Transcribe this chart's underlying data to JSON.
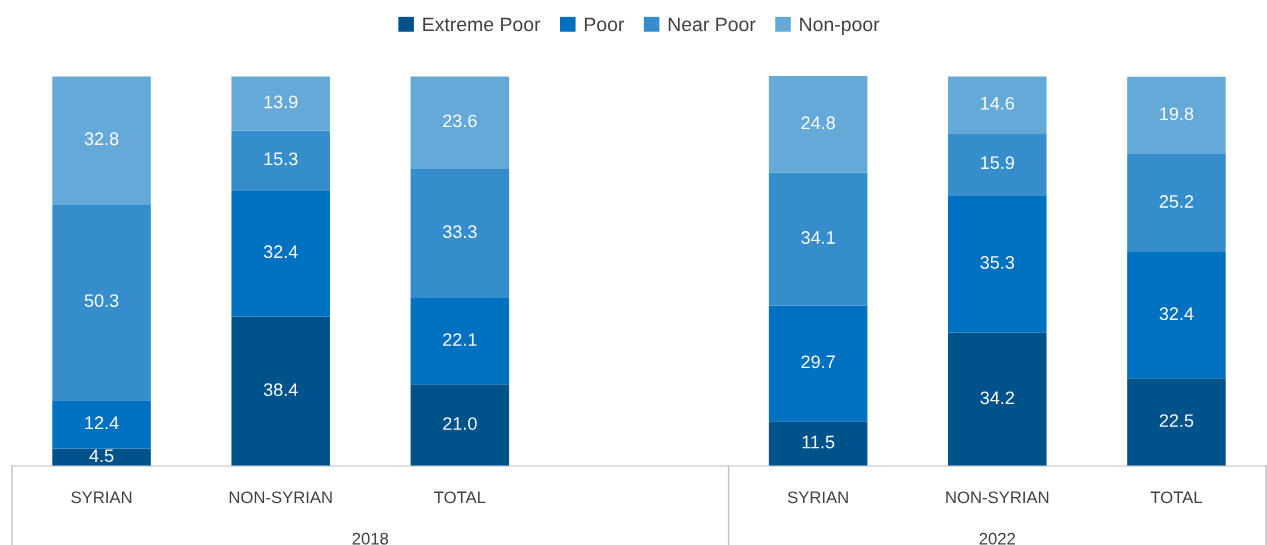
{
  "chart_data": {
    "type": "bar",
    "stacked": true,
    "legend": "top",
    "grid": false,
    "categories": [
      "SYRIAN",
      "NON-SYRIAN",
      "TOTAL",
      null,
      "SYRIAN",
      "NON-SYRIAN",
      "TOTAL"
    ],
    "series": [
      {
        "name": "Extreme Poor",
        "color": "#00538a",
        "values": [
          4.5,
          38.4,
          21.0,
          null,
          11.5,
          34.2,
          22.5
        ],
        "value_labels": [
          "4.5",
          "38.4",
          "21.0",
          null,
          "11.5",
          "34.2",
          "22.5"
        ]
      },
      {
        "name": "Poor",
        "color": "#0070c0",
        "values": [
          12.4,
          32.4,
          22.1,
          null,
          29.7,
          35.3,
          32.4
        ],
        "value_labels": [
          "12.4",
          "32.4",
          "22.1",
          null,
          "29.7",
          "35.3",
          "32.4"
        ]
      },
      {
        "name": "Near Poor",
        "color": "#358ecb",
        "values": [
          50.3,
          15.3,
          33.3,
          null,
          34.1,
          15.9,
          25.2
        ],
        "value_labels": [
          "50.3",
          "15.3",
          "33.3",
          null,
          "34.1",
          "15.9",
          "25.2"
        ]
      },
      {
        "name": "Non-poor",
        "color": "#64a9d8",
        "values": [
          32.8,
          13.9,
          23.6,
          null,
          24.8,
          14.6,
          19.8
        ],
        "value_labels": [
          "32.8",
          "13.9",
          "23.6",
          null,
          "24.8",
          "14.6",
          "19.8"
        ]
      }
    ],
    "annotations": [
      "2018",
      "2022"
    ]
  }
}
